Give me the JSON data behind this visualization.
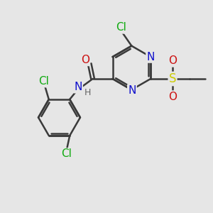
{
  "bg_color": "#e6e6e6",
  "bond_color": "#3a3a3a",
  "bond_width": 1.8,
  "atom_colors": {
    "C": "#3a3a3a",
    "N": "#1010cc",
    "O": "#cc1010",
    "S": "#cccc00",
    "Cl": "#10aa10",
    "H": "#666666"
  },
  "font_size": 11,
  "font_size_small": 9
}
